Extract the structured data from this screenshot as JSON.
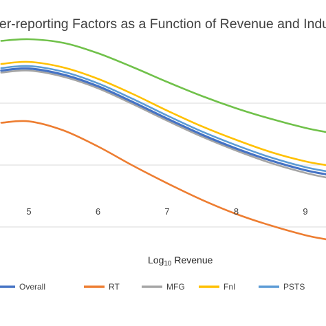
{
  "chart_data": {
    "type": "line",
    "title": "der-reporting Factors as a Function of Revenue and Indu",
    "xlabel": "Log10 Revenue",
    "xlabel_main": "Log",
    "xlabel_sub": "10",
    "xlabel_rest": " Revenue",
    "ylabel": "",
    "x_ticks": [
      5,
      6,
      7,
      8,
      9
    ],
    "x_range": [
      4.58,
      9.3
    ],
    "y_range": [
      0,
      1
    ],
    "y_gridlines": [
      0.1,
      0.4,
      0.7
    ],
    "grid": true,
    "legend_position": "bottom",
    "series": [
      {
        "name": "Overall",
        "color": "#4472C4",
        "x": [
          4.6,
          5.0,
          5.5,
          6.0,
          6.5,
          7.0,
          7.5,
          8.0,
          8.5,
          9.0,
          9.3
        ],
        "y": [
          0.858,
          0.868,
          0.838,
          0.782,
          0.706,
          0.625,
          0.548,
          0.48,
          0.422,
          0.375,
          0.355
        ]
      },
      {
        "name": "RT",
        "color": "#ED7D31",
        "x": [
          4.6,
          5.0,
          5.5,
          6.0,
          6.5,
          7.0,
          7.5,
          8.0,
          8.5,
          9.0,
          9.3
        ],
        "y": [
          0.605,
          0.612,
          0.568,
          0.49,
          0.398,
          0.312,
          0.232,
          0.163,
          0.107,
          0.06,
          0.04
        ]
      },
      {
        "name": "MFG",
        "color": "#A5A5A5",
        "x": [
          4.6,
          5.0,
          5.5,
          6.0,
          6.5,
          7.0,
          7.5,
          8.0,
          8.5,
          9.0,
          9.3
        ],
        "y": [
          0.848,
          0.858,
          0.828,
          0.772,
          0.696,
          0.615,
          0.538,
          0.47,
          0.41,
          0.362,
          0.34
        ]
      },
      {
        "name": "FnI",
        "color": "#FFC000",
        "x": [
          4.6,
          5.0,
          5.5,
          6.0,
          6.5,
          7.0,
          7.5,
          8.0,
          8.5,
          9.0,
          9.3
        ],
        "y": [
          0.89,
          0.9,
          0.873,
          0.818,
          0.745,
          0.664,
          0.588,
          0.522,
          0.463,
          0.418,
          0.4
        ]
      },
      {
        "name": "PSTS",
        "color": "#5B9BD5",
        "x": [
          4.6,
          5.0,
          5.5,
          6.0,
          6.5,
          7.0,
          7.5,
          8.0,
          8.5,
          9.0,
          9.3
        ],
        "y": [
          0.87,
          0.88,
          0.852,
          0.796,
          0.721,
          0.64,
          0.563,
          0.496,
          0.437,
          0.39,
          0.37
        ]
      },
      {
        "name": "",
        "color": "#70C14A",
        "x": [
          4.6,
          5.0,
          5.5,
          6.0,
          6.5,
          7.0,
          7.5,
          8.0,
          8.5,
          9.0,
          9.3
        ],
        "y": [
          1.002,
          1.01,
          0.992,
          0.942,
          0.875,
          0.803,
          0.735,
          0.675,
          0.624,
          0.58,
          0.56
        ]
      }
    ]
  }
}
